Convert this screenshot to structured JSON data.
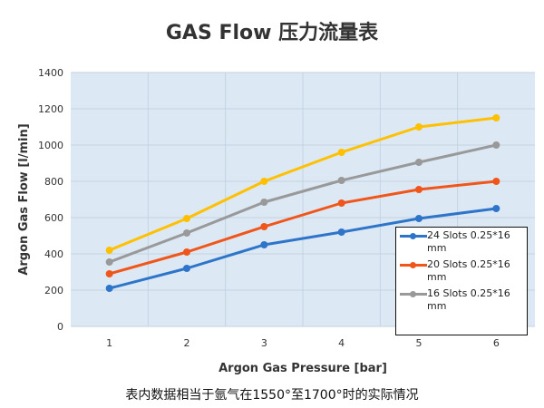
{
  "chart_data": {
    "type": "line",
    "title": "GAS Flow 压力流量表",
    "xlabel": "Argon Gas Pressure [bar]",
    "ylabel": "Argon Gas Flow [l/min]",
    "categories": [
      "1",
      "2",
      "3",
      "4",
      "5",
      "6"
    ],
    "ylim": [
      0,
      1400
    ],
    "yticks": [
      "0",
      "200",
      "400",
      "600",
      "800",
      "1000",
      "1200",
      "1400"
    ],
    "grid": true,
    "plot_background": "#dce9f5",
    "legend_position": "bottom-right",
    "series": [
      {
        "name": "24 Slots 0.25*16 mm",
        "color": "#2e75c9",
        "values": [
          210,
          320,
          450,
          520,
          595,
          650
        ]
      },
      {
        "name": "20 Slots 0.25*16 mm",
        "color": "#f0561a",
        "values": [
          290,
          410,
          550,
          680,
          755,
          800
        ]
      },
      {
        "name": "16 Slots 0.25*16 mm",
        "color": "#999999",
        "values": [
          355,
          515,
          685,
          805,
          905,
          1000
        ]
      },
      {
        "color": "#ffc000",
        "values": [
          420,
          595,
          800,
          960,
          1100,
          1150
        ]
      }
    ],
    "caption": "表内数据相当于氩气在1550°至1700°时的实际情况"
  }
}
